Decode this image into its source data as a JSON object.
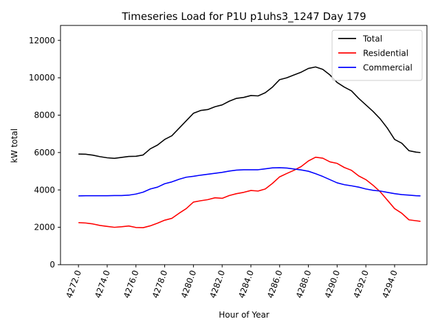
{
  "chart_data": {
    "type": "line",
    "title": "Timeseries Load for P1U p1uhs3_1247  Day 179",
    "xlabel": "Hour of Year",
    "ylabel": "kW total",
    "xlim": [
      4270.75,
      4296.25
    ],
    "ylim": [
      0,
      12800
    ],
    "xticks": [
      4272,
      4274,
      4276,
      4278,
      4280,
      4282,
      4284,
      4286,
      4288,
      4290,
      4292,
      4294
    ],
    "xtick_labels": [
      "4272.0",
      "4274.0",
      "4276.0",
      "4278.0",
      "4280.0",
      "4282.0",
      "4284.0",
      "4286.0",
      "4288.0",
      "4290.0",
      "4292.0",
      "4294.0"
    ],
    "yticks": [
      0,
      2000,
      4000,
      6000,
      8000,
      10000,
      12000
    ],
    "ytick_labels": [
      "0",
      "2000",
      "4000",
      "6000",
      "8000",
      "10000",
      "12000"
    ],
    "legend_position": "top-right",
    "series": [
      {
        "name": "Total",
        "color": "#000000",
        "points": [
          [
            4272.0,
            5920
          ],
          [
            4272.5,
            5910
          ],
          [
            4273.0,
            5860
          ],
          [
            4273.5,
            5780
          ],
          [
            4274.0,
            5720
          ],
          [
            4274.5,
            5690
          ],
          [
            4275.0,
            5740
          ],
          [
            4275.5,
            5790
          ],
          [
            4276.0,
            5800
          ],
          [
            4276.5,
            5870
          ],
          [
            4277.0,
            6200
          ],
          [
            4277.5,
            6400
          ],
          [
            4278.0,
            6700
          ],
          [
            4278.5,
            6900
          ],
          [
            4279.0,
            7300
          ],
          [
            4279.5,
            7700
          ],
          [
            4280.0,
            8100
          ],
          [
            4280.5,
            8250
          ],
          [
            4281.0,
            8300
          ],
          [
            4281.5,
            8450
          ],
          [
            4282.0,
            8550
          ],
          [
            4282.5,
            8750
          ],
          [
            4283.0,
            8900
          ],
          [
            4283.5,
            8950
          ],
          [
            4284.0,
            9050
          ],
          [
            4284.5,
            9030
          ],
          [
            4285.0,
            9200
          ],
          [
            4285.5,
            9500
          ],
          [
            4286.0,
            9900
          ],
          [
            4286.5,
            10000
          ],
          [
            4287.0,
            10150
          ],
          [
            4287.5,
            10300
          ],
          [
            4288.0,
            10500
          ],
          [
            4288.5,
            10580
          ],
          [
            4289.0,
            10450
          ],
          [
            4289.5,
            10150
          ],
          [
            4290.0,
            9750
          ],
          [
            4290.5,
            9500
          ],
          [
            4291.0,
            9300
          ],
          [
            4291.5,
            8900
          ],
          [
            4292.0,
            8550
          ],
          [
            4292.5,
            8200
          ],
          [
            4293.0,
            7800
          ],
          [
            4293.5,
            7300
          ],
          [
            4294.0,
            6700
          ],
          [
            4294.5,
            6500
          ],
          [
            4295.0,
            6100
          ],
          [
            4295.5,
            6020
          ],
          [
            4295.8,
            6000
          ]
        ]
      },
      {
        "name": "Residential",
        "color": "#ff0000",
        "points": [
          [
            4272.0,
            2250
          ],
          [
            4272.5,
            2230
          ],
          [
            4273.0,
            2180
          ],
          [
            4273.5,
            2100
          ],
          [
            4274.0,
            2050
          ],
          [
            4274.5,
            2000
          ],
          [
            4275.0,
            2030
          ],
          [
            4275.5,
            2070
          ],
          [
            4276.0,
            1990
          ],
          [
            4276.5,
            1980
          ],
          [
            4277.0,
            2080
          ],
          [
            4277.5,
            2220
          ],
          [
            4278.0,
            2380
          ],
          [
            4278.5,
            2480
          ],
          [
            4279.0,
            2750
          ],
          [
            4279.5,
            3000
          ],
          [
            4280.0,
            3350
          ],
          [
            4280.5,
            3420
          ],
          [
            4281.0,
            3480
          ],
          [
            4281.5,
            3580
          ],
          [
            4282.0,
            3550
          ],
          [
            4282.5,
            3700
          ],
          [
            4283.0,
            3800
          ],
          [
            4283.5,
            3870
          ],
          [
            4284.0,
            3970
          ],
          [
            4284.5,
            3940
          ],
          [
            4285.0,
            4050
          ],
          [
            4285.5,
            4350
          ],
          [
            4286.0,
            4700
          ],
          [
            4286.5,
            4880
          ],
          [
            4287.0,
            5050
          ],
          [
            4287.5,
            5250
          ],
          [
            4288.0,
            5550
          ],
          [
            4288.5,
            5750
          ],
          [
            4289.0,
            5700
          ],
          [
            4289.5,
            5500
          ],
          [
            4290.0,
            5420
          ],
          [
            4290.5,
            5200
          ],
          [
            4291.0,
            5050
          ],
          [
            4291.5,
            4750
          ],
          [
            4292.0,
            4550
          ],
          [
            4292.5,
            4250
          ],
          [
            4293.0,
            3900
          ],
          [
            4293.5,
            3450
          ],
          [
            4294.0,
            3000
          ],
          [
            4294.5,
            2750
          ],
          [
            4295.0,
            2400
          ],
          [
            4295.5,
            2350
          ],
          [
            4295.8,
            2320
          ]
        ]
      },
      {
        "name": "Commercial",
        "color": "#0000ff",
        "points": [
          [
            4272.0,
            3680
          ],
          [
            4272.5,
            3690
          ],
          [
            4273.0,
            3690
          ],
          [
            4273.5,
            3690
          ],
          [
            4274.0,
            3690
          ],
          [
            4274.5,
            3700
          ],
          [
            4275.0,
            3700
          ],
          [
            4275.5,
            3720
          ],
          [
            4276.0,
            3780
          ],
          [
            4276.5,
            3880
          ],
          [
            4277.0,
            4050
          ],
          [
            4277.5,
            4150
          ],
          [
            4278.0,
            4330
          ],
          [
            4278.5,
            4430
          ],
          [
            4279.0,
            4570
          ],
          [
            4279.5,
            4680
          ],
          [
            4280.0,
            4730
          ],
          [
            4280.5,
            4790
          ],
          [
            4281.0,
            4840
          ],
          [
            4281.5,
            4890
          ],
          [
            4282.0,
            4940
          ],
          [
            4282.5,
            5010
          ],
          [
            4283.0,
            5060
          ],
          [
            4283.5,
            5080
          ],
          [
            4284.0,
            5080
          ],
          [
            4284.5,
            5080
          ],
          [
            4285.0,
            5130
          ],
          [
            4285.5,
            5180
          ],
          [
            4286.0,
            5190
          ],
          [
            4286.5,
            5170
          ],
          [
            4287.0,
            5120
          ],
          [
            4287.5,
            5070
          ],
          [
            4288.0,
            5000
          ],
          [
            4288.5,
            4870
          ],
          [
            4289.0,
            4720
          ],
          [
            4289.5,
            4550
          ],
          [
            4290.0,
            4380
          ],
          [
            4290.5,
            4280
          ],
          [
            4291.0,
            4220
          ],
          [
            4291.5,
            4150
          ],
          [
            4292.0,
            4050
          ],
          [
            4292.5,
            3980
          ],
          [
            4293.0,
            3940
          ],
          [
            4293.5,
            3870
          ],
          [
            4294.0,
            3800
          ],
          [
            4294.5,
            3750
          ],
          [
            4295.0,
            3720
          ],
          [
            4295.5,
            3690
          ],
          [
            4295.8,
            3680
          ]
        ]
      }
    ]
  }
}
